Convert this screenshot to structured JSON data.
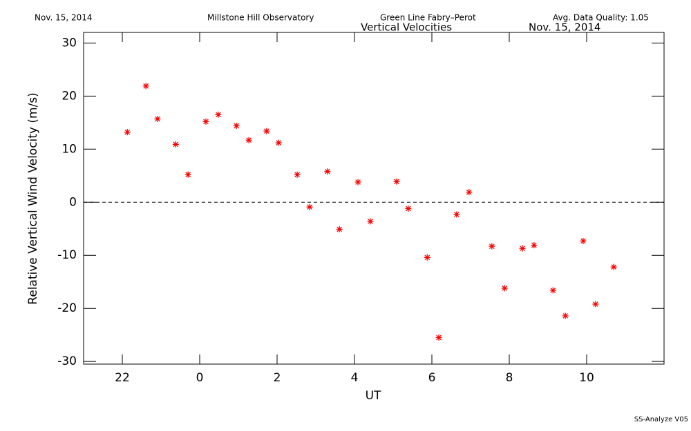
{
  "chart_data": {
    "type": "scatter",
    "date": "Nov. 15, 2014",
    "observatory": "Millstone Hill Observatory",
    "instrument": "Green Line Fabry–Perot",
    "data_quality": "Avg. Data Quality: 1.05",
    "title": "Vertical Velocities",
    "title_date": "Nov. 15, 2014",
    "footer": "SS-Analyze V05",
    "x_label": "UT",
    "y_label": "Relative Vertical Wind Velocity (m/s)",
    "xlim": [
      21,
      36
    ],
    "xticks": [
      22,
      {
        "value": 24,
        "label": "0"
      },
      {
        "value": 26,
        "label": "2"
      },
      {
        "value": 28,
        "label": "4"
      },
      {
        "value": 30,
        "label": "6"
      },
      {
        "value": 32,
        "label": "8"
      },
      {
        "value": 34,
        "label": "10"
      }
    ],
    "ylim": [
      -30.5,
      32
    ],
    "yticks": [
      -30,
      -20,
      -10,
      0,
      10,
      20,
      30
    ],
    "zero_line": true,
    "series": [
      {
        "color": "#ff0000",
        "x": [
          22.13,
          22.61,
          22.91,
          23.38,
          23.7,
          24.16,
          24.48,
          24.95,
          25.27,
          25.73,
          26.04,
          26.52,
          26.84,
          27.3,
          27.61,
          28.09,
          28.41,
          29.09,
          29.39,
          29.88,
          30.18,
          30.64,
          30.96,
          31.55,
          31.88,
          32.34,
          32.64,
          33.13,
          33.45,
          33.91,
          34.23,
          34.7
        ],
        "values": [
          13.2,
          21.9,
          15.7,
          10.9,
          5.2,
          15.2,
          16.5,
          14.4,
          11.7,
          13.4,
          11.2,
          5.2,
          -0.9,
          5.8,
          -5.1,
          3.8,
          -3.6,
          3.9,
          -1.2,
          -10.4,
          -25.5,
          -2.3,
          1.9,
          -8.3,
          -16.2,
          -8.7,
          -8.1,
          -16.6,
          -21.4,
          -7.3,
          -19.2,
          -12.2
        ]
      }
    ]
  }
}
